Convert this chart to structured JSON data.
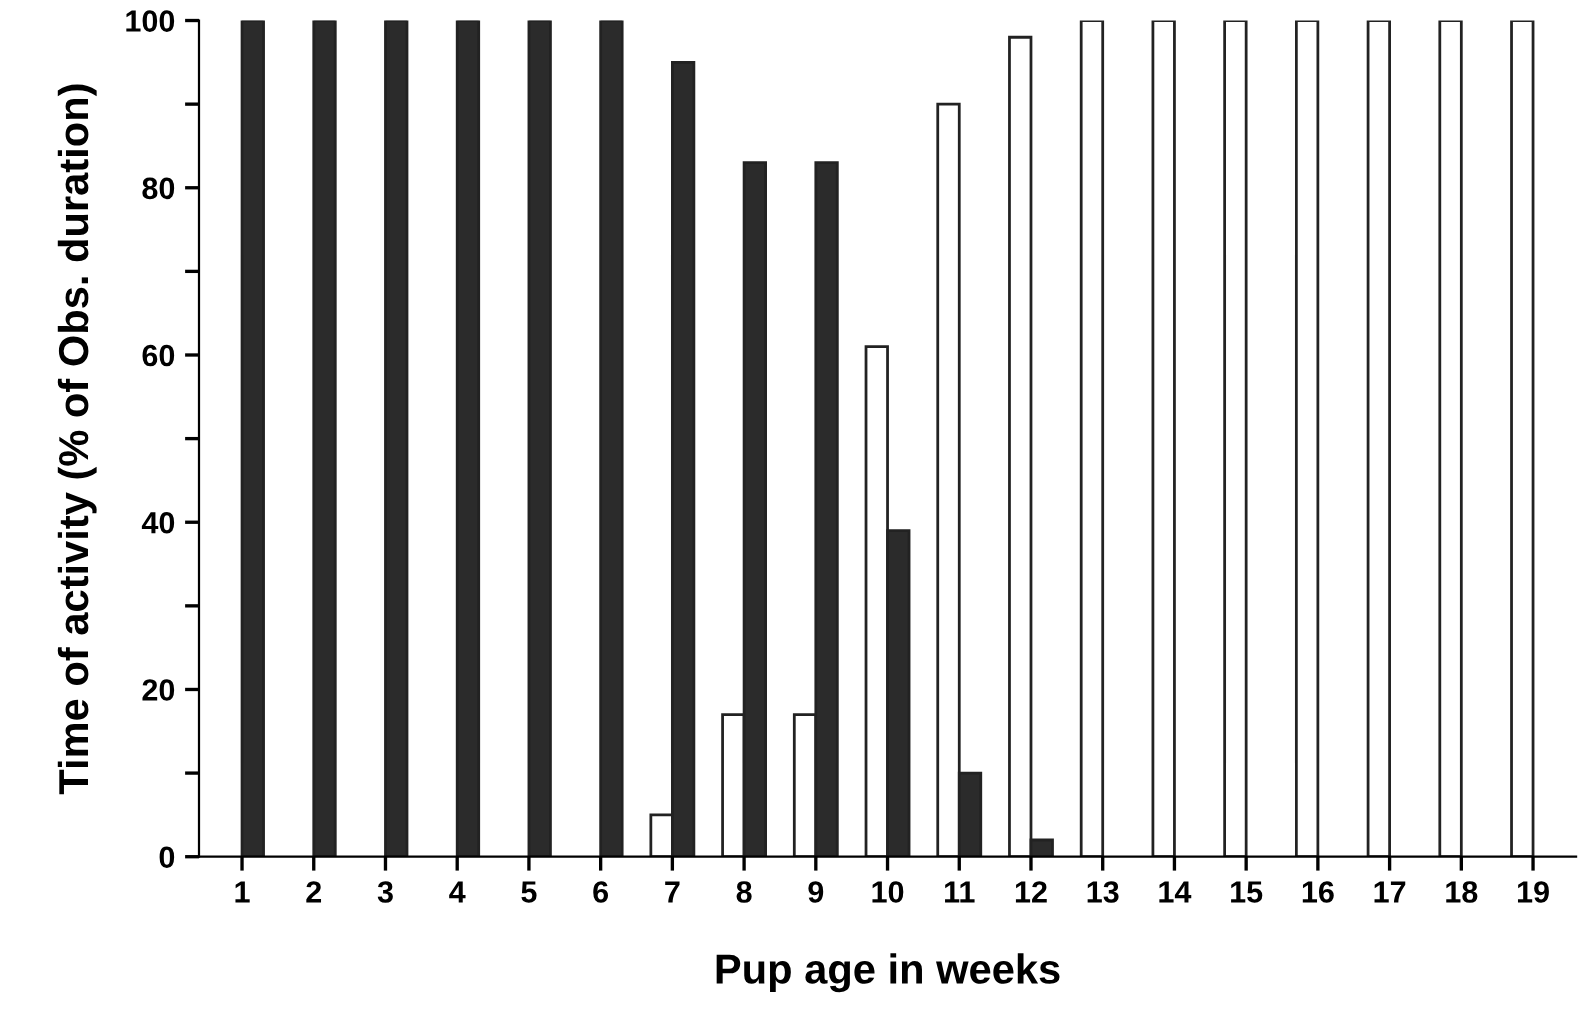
{
  "chart_data": {
    "type": "bar",
    "xlabel": "Pup age in weeks",
    "ylabel": "Time of activity (% of Obs. duration)",
    "categories": [
      "1",
      "2",
      "3",
      "4",
      "5",
      "6",
      "7",
      "8",
      "9",
      "10",
      "11",
      "12",
      "13",
      "14",
      "15",
      "16",
      "17",
      "18",
      "19"
    ],
    "series": [
      {
        "color": "#ffffff",
        "values": [
          0,
          0,
          0,
          0,
          0,
          0,
          5,
          17,
          17,
          61,
          90,
          98,
          100,
          100,
          100,
          100,
          100,
          100,
          100
        ]
      },
      {
        "color": "#2b2b2b",
        "values": [
          100,
          100,
          100,
          100,
          100,
          100,
          95,
          83,
          83,
          39,
          10,
          2,
          0,
          0,
          0,
          0,
          0,
          0,
          0
        ]
      }
    ],
    "ylim": [
      0,
      100
    ],
    "yticks": [
      0,
      {
        "value": 10,
        "label": null
      },
      20,
      {
        "value": 30,
        "label": null
      },
      40,
      {
        "value": 50,
        "label": null
      },
      60,
      {
        "value": 70,
        "label": null
      },
      80,
      {
        "value": 90,
        "label": null
      },
      100
    ],
    "grid": false,
    "legend": false
  }
}
